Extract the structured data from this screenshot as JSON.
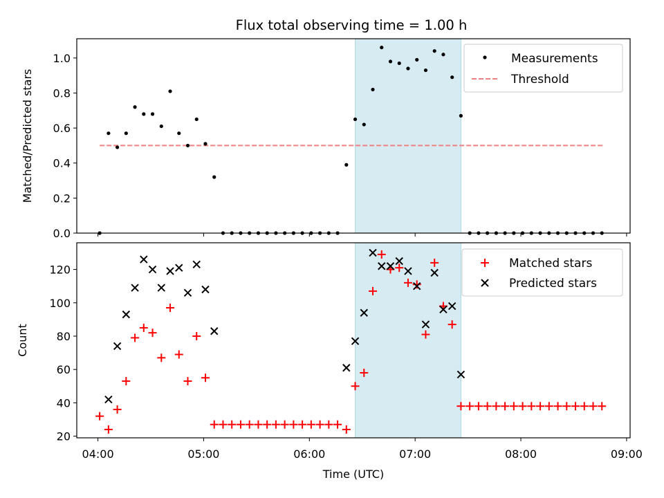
{
  "title": "Flux total observing time = 1.00 h",
  "colors": {
    "measurement": "#000000",
    "threshold": "#f08080",
    "matched": "#ff0000",
    "predicted": "#000000",
    "span": "#add8e6"
  },
  "chart_data": [
    {
      "type": "scatter",
      "ylabel": "Matched/Predicted stars",
      "xlim": [
        "03:48",
        "09:02"
      ],
      "ylim": [
        0,
        1.11
      ],
      "yticks": [
        0.0,
        0.2,
        0.4,
        0.6,
        0.8,
        1.0
      ],
      "ytick_labels": [
        "0.0",
        "0.2",
        "0.4",
        "0.6",
        "0.8",
        "1.0"
      ],
      "highlight_span": [
        "06:26",
        "07:26"
      ],
      "legend": {
        "position": "top-right",
        "entries": [
          "Measurements",
          "Threshold"
        ]
      },
      "threshold": {
        "name": "Threshold",
        "value": 0.5,
        "x_start": "04:01",
        "x_end": "08:47"
      },
      "series": [
        {
          "name": "Measurements",
          "x": [
            "04:01",
            "04:06",
            "04:11",
            "04:16",
            "04:21",
            "04:26",
            "04:31",
            "04:36",
            "04:41",
            "04:46",
            "04:51",
            "04:56",
            "05:01",
            "05:06",
            "05:11",
            "05:16",
            "05:21",
            "05:26",
            "05:31",
            "05:36",
            "05:41",
            "05:46",
            "05:51",
            "05:56",
            "06:01",
            "06:06",
            "06:11",
            "06:16",
            "06:21",
            "06:26",
            "06:31",
            "06:36",
            "06:41",
            "06:46",
            "06:51",
            "06:56",
            "07:01",
            "07:06",
            "07:11",
            "07:16",
            "07:21",
            "07:26",
            "07:31",
            "07:36",
            "07:41",
            "07:46",
            "07:51",
            "07:56",
            "08:01",
            "08:06",
            "08:11",
            "08:16",
            "08:21",
            "08:26",
            "08:31",
            "08:36",
            "08:41",
            "08:46"
          ],
          "y": [
            0.0,
            0.57,
            0.49,
            0.57,
            0.72,
            0.68,
            0.68,
            0.61,
            0.81,
            0.57,
            0.5,
            0.65,
            0.51,
            0.32,
            0.0,
            0.0,
            0.0,
            0.0,
            0.0,
            0.0,
            0.0,
            0.0,
            0.0,
            0.0,
            0.0,
            0.0,
            0.0,
            0.0,
            0.39,
            0.65,
            0.62,
            0.82,
            1.06,
            0.98,
            0.97,
            0.94,
            0.99,
            0.93,
            1.04,
            1.02,
            0.89,
            0.67,
            0.0,
            0.0,
            0.0,
            0.0,
            0.0,
            0.0,
            0.0,
            0.0,
            0.0,
            0.0,
            0.0,
            0.0,
            0.0,
            0.0,
            0.0,
            0.0
          ]
        }
      ]
    },
    {
      "type": "scatter",
      "xlabel": "Time (UTC)",
      "ylabel": "Count",
      "xlim": [
        "03:48",
        "09:02"
      ],
      "xticks": [
        "04:00",
        "05:00",
        "06:00",
        "07:00",
        "08:00",
        "09:00"
      ],
      "ylim": [
        19,
        136
      ],
      "yticks": [
        20,
        40,
        60,
        80,
        100,
        120
      ],
      "highlight_span": [
        "06:26",
        "07:26"
      ],
      "legend": {
        "position": "top-right",
        "entries": [
          "Matched stars",
          "Predicted stars"
        ]
      },
      "series": [
        {
          "name": "Matched stars",
          "marker": "+",
          "x": [
            "04:01",
            "04:06",
            "04:11",
            "04:16",
            "04:21",
            "04:26",
            "04:31",
            "04:36",
            "04:41",
            "04:46",
            "04:51",
            "04:56",
            "05:01",
            "05:06",
            "05:11",
            "05:16",
            "05:21",
            "05:26",
            "05:31",
            "05:36",
            "05:41",
            "05:46",
            "05:51",
            "05:56",
            "06:01",
            "06:06",
            "06:11",
            "06:16",
            "06:21",
            "06:26",
            "06:31",
            "06:36",
            "06:41",
            "06:46",
            "06:51",
            "06:56",
            "07:01",
            "07:06",
            "07:11",
            "07:16",
            "07:21",
            "07:26",
            "07:31",
            "07:36",
            "07:41",
            "07:46",
            "07:51",
            "07:56",
            "08:01",
            "08:06",
            "08:11",
            "08:16",
            "08:21",
            "08:26",
            "08:31",
            "08:36",
            "08:41",
            "08:46"
          ],
          "y": [
            32,
            24,
            36,
            53,
            79,
            85,
            82,
            67,
            97,
            69,
            53,
            80,
            55,
            27,
            27,
            27,
            27,
            27,
            27,
            27,
            27,
            27,
            27,
            27,
            27,
            27,
            27,
            27,
            24,
            50,
            58,
            107,
            129,
            120,
            121,
            112,
            111,
            81,
            124,
            98,
            87,
            38,
            38,
            38,
            38,
            38,
            38,
            38,
            38,
            38,
            38,
            38,
            38,
            38,
            38,
            38,
            38,
            38
          ]
        },
        {
          "name": "Predicted stars",
          "marker": "x",
          "x": [
            "04:06",
            "04:11",
            "04:16",
            "04:21",
            "04:26",
            "04:31",
            "04:36",
            "04:41",
            "04:46",
            "04:51",
            "04:56",
            "05:01",
            "05:06",
            "06:21",
            "06:26",
            "06:31",
            "06:36",
            "06:41",
            "06:46",
            "06:51",
            "06:56",
            "07:01",
            "07:06",
            "07:11",
            "07:16",
            "07:21",
            "07:26"
          ],
          "y": [
            42,
            74,
            93,
            109,
            126,
            120,
            109,
            119,
            121,
            106,
            123,
            108,
            83,
            61,
            77,
            94,
            130,
            122,
            122,
            125,
            119,
            110,
            87,
            118,
            96,
            98,
            57
          ]
        }
      ]
    }
  ]
}
